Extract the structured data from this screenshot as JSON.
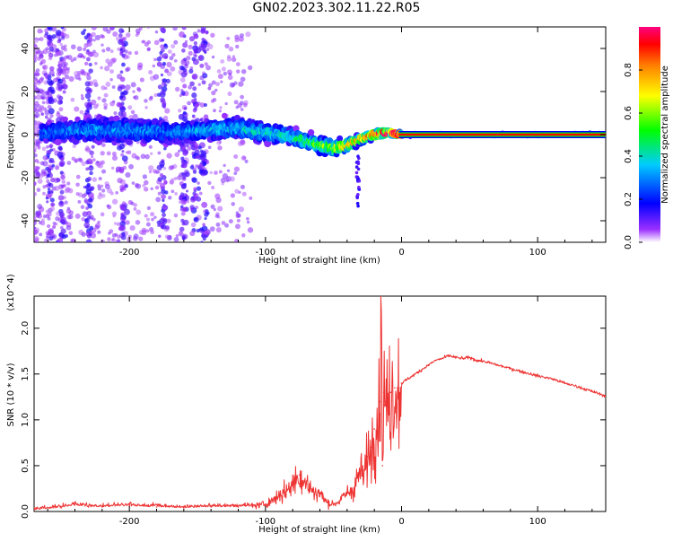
{
  "title": "GN02.2023.302.11.22.R05",
  "chart_data": [
    {
      "type": "heatmap",
      "panel": "spectrogram",
      "xlabel": "Height of straight line (km)",
      "ylabel": "Frequency (Hz)",
      "xlim": [
        -270,
        150
      ],
      "ylim": [
        -50,
        50
      ],
      "xticks": [
        -200,
        -100,
        0,
        100
      ],
      "yticks": [
        -40,
        -20,
        0,
        20,
        40
      ],
      "xtick_labels": [
        "-200",
        "-100",
        "0",
        "100"
      ],
      "ytick_labels": [
        "-40",
        "-20",
        "0",
        "20",
        "40"
      ],
      "colorbar": {
        "label": "Normalized spectral amplitude",
        "range": [
          0.0,
          1.0
        ],
        "ticks": [
          0.0,
          0.2,
          0.4,
          0.6,
          0.8
        ],
        "tick_labels": [
          "0.0",
          "0.2",
          "0.4",
          "0.6",
          "0.8"
        ],
        "colors": [
          "#ffffff",
          "#7b00ff",
          "#0000ff",
          "#00e5ff",
          "#00ff00",
          "#ffff00",
          "#ff8000",
          "#ff0000",
          "#ff0080"
        ]
      },
      "ridge": {
        "x": [
          -260,
          -230,
          -200,
          -170,
          -140,
          -120,
          -100,
          -80,
          -70,
          -60,
          -50,
          -40,
          -30,
          -20,
          -10,
          0,
          20,
          60,
          100,
          150
        ],
        "y": [
          1,
          2,
          2,
          1,
          2,
          3,
          1,
          -1,
          -3,
          -5,
          -6,
          -5,
          -2,
          0,
          1,
          0,
          0,
          0,
          0,
          0
        ],
        "spread": [
          5,
          6,
          6,
          5,
          5,
          5,
          5,
          4,
          4,
          4,
          4,
          3,
          2,
          2,
          1.5,
          1,
          1,
          1,
          1,
          1
        ],
        "amplitude": [
          0.28,
          0.32,
          0.32,
          0.3,
          0.35,
          0.38,
          0.4,
          0.42,
          0.5,
          0.55,
          0.6,
          0.75,
          0.8,
          0.85,
          0.95,
          1.0,
          1.0,
          1.0,
          1.0,
          1.0
        ]
      }
    },
    {
      "type": "line",
      "panel": "snr",
      "xlabel": "Height of straight line (km)",
      "ylabel": "SNR (10 * v/v)",
      "scale_label": "(x10^4)",
      "xlim": [
        -270,
        150
      ],
      "ylim": [
        0,
        2.35
      ],
      "xticks": [
        -200,
        -100,
        0,
        100
      ],
      "yticks": [
        0.0,
        0.5,
        1.0,
        1.5,
        2.0
      ],
      "xtick_labels": [
        "-200",
        "-100",
        "0",
        "100"
      ],
      "ytick_labels": [
        "0.0",
        "0.5",
        "1.0",
        "1.5",
        "2.0"
      ],
      "series": [
        {
          "color": "#ee3333",
          "x": [
            -270,
            -250,
            -240,
            -230,
            -220,
            -200,
            -180,
            -160,
            -140,
            -120,
            -110,
            -100,
            -95,
            -90,
            -85,
            -80,
            -75,
            -70,
            -65,
            -60,
            -55,
            -50,
            -45,
            -40,
            -35,
            -30,
            -28,
            -25,
            -22,
            -20,
            -18,
            -16,
            -15,
            -14,
            -13,
            -12,
            -10,
            -8,
            -5,
            -2,
            0,
            5,
            10,
            15,
            20,
            25,
            30,
            35,
            40,
            45,
            50,
            55,
            60,
            70,
            80,
            90,
            100,
            110,
            120,
            130,
            140,
            150
          ],
          "y": [
            0.02,
            0.04,
            0.07,
            0.05,
            0.05,
            0.06,
            0.05,
            0.04,
            0.05,
            0.05,
            0.06,
            0.08,
            0.12,
            0.18,
            0.22,
            0.3,
            0.4,
            0.3,
            0.22,
            0.2,
            0.1,
            0.08,
            0.12,
            0.2,
            0.25,
            0.45,
            0.35,
            0.6,
            0.7,
            0.9,
            1.0,
            1.2,
            2.35,
            0.5,
            1.3,
            1.2,
            1.1,
            1.3,
            1.35,
            1.3,
            1.4,
            1.45,
            1.5,
            1.55,
            1.6,
            1.65,
            1.67,
            1.7,
            1.68,
            1.67,
            1.68,
            1.65,
            1.64,
            1.6,
            1.56,
            1.52,
            1.48,
            1.45,
            1.4,
            1.36,
            1.31,
            1.26
          ]
        }
      ]
    }
  ]
}
